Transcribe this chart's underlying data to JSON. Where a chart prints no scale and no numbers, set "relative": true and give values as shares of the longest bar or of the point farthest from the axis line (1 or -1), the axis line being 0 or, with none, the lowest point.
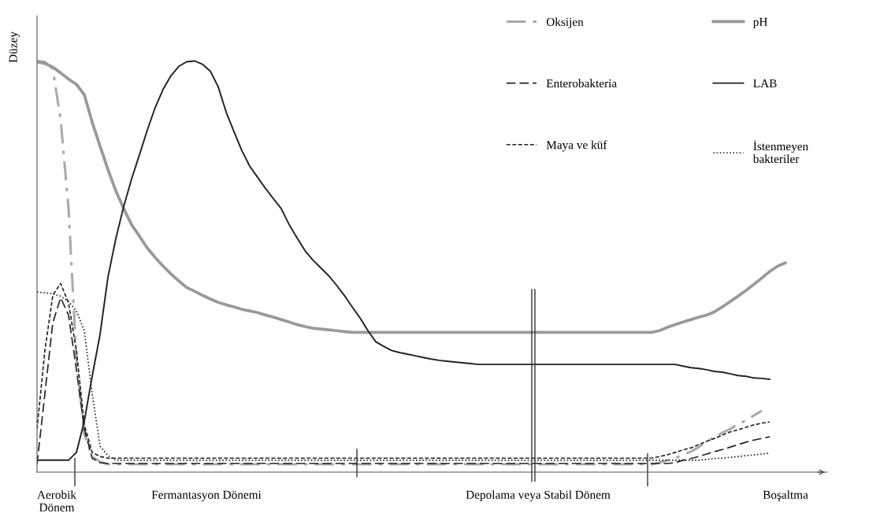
{
  "chart_data": {
    "type": "line",
    "relative": true,
    "ylabel": "Düzey",
    "legend": "top right",
    "categories": [
      null,
      null,
      null,
      null,
      null,
      null,
      null,
      null,
      null,
      null,
      null,
      null,
      null,
      null,
      null,
      null,
      null,
      null,
      null,
      null,
      null,
      null,
      null,
      null,
      null,
      null,
      null,
      null,
      null,
      null,
      null,
      null,
      null,
      null,
      null,
      null,
      null,
      null,
      null,
      null,
      null,
      null,
      null,
      null,
      null,
      null,
      null,
      null,
      null,
      null,
      null,
      null,
      null,
      null,
      null,
      null,
      null,
      null,
      null,
      null,
      null,
      null,
      null,
      null,
      null,
      null,
      null,
      null,
      null,
      null,
      null,
      null,
      null,
      null,
      null,
      null,
      null,
      null,
      null,
      null,
      null,
      null,
      null,
      null,
      null,
      null,
      null,
      null,
      null,
      null,
      null,
      null,
      null,
      null,
      null,
      null,
      null,
      null,
      null,
      null,
      null
    ],
    "series": [
      {
        "name": "Oksijen",
        "color": "#aaaaaa",
        "line_style": "dashdot",
        "values": [
          1.0,
          0.998,
          0.981,
          0.857,
          0.641,
          0.277,
          0.092,
          0.038,
          0.025,
          0.019,
          0.019,
          0.019,
          0.019,
          0.019,
          0.019,
          0.019,
          0.019,
          0.019,
          0.019,
          0.019,
          0.019,
          0.019,
          0.019,
          0.019,
          0.019,
          0.019,
          0.019,
          0.019,
          0.019,
          0.019,
          0.019,
          0.019,
          0.019,
          0.019,
          0.019,
          0.019,
          0.019,
          0.019,
          0.019,
          0.019,
          0.019,
          0.019,
          0.019,
          0.019,
          0.019,
          0.019,
          0.019,
          0.019,
          0.019,
          0.019,
          0.019,
          0.019,
          0.019,
          0.019,
          0.019,
          0.019,
          0.019,
          0.019,
          0.019,
          0.019,
          0.019,
          0.019,
          0.019,
          0.019,
          0.019,
          0.019,
          0.019,
          0.019,
          0.019,
          0.019,
          0.019,
          0.019,
          0.019,
          0.019,
          0.019,
          0.019,
          0.019,
          0.019,
          0.019,
          0.023,
          0.029,
          0.034,
          0.042,
          0.05,
          0.061,
          0.075,
          0.084,
          0.096,
          0.105,
          0.117,
          0.126,
          0.138,
          0.149,
          null,
          null,
          null,
          null,
          null,
          null,
          null,
          null
        ]
      },
      {
        "name": "pH",
        "color": "#999999",
        "line_style": "solid",
        "values": [
          0.998,
          0.994,
          0.985,
          0.971,
          0.956,
          0.943,
          0.918,
          0.851,
          0.793,
          0.736,
          0.684,
          0.641,
          0.602,
          0.574,
          0.545,
          0.522,
          0.501,
          0.482,
          0.465,
          0.449,
          0.44,
          0.43,
          0.421,
          0.413,
          0.407,
          0.402,
          0.396,
          0.392,
          0.388,
          0.382,
          0.377,
          0.371,
          0.365,
          0.359,
          0.354,
          0.35,
          0.348,
          0.346,
          0.344,
          0.342,
          0.34,
          0.34,
          0.34,
          0.34,
          0.34,
          0.34,
          0.34,
          0.34,
          0.34,
          0.34,
          0.34,
          0.34,
          0.34,
          0.34,
          0.34,
          0.34,
          0.34,
          0.34,
          0.34,
          0.34,
          0.34,
          0.34,
          0.34,
          0.34,
          0.34,
          0.34,
          0.34,
          0.34,
          0.34,
          0.34,
          0.34,
          0.34,
          0.34,
          0.34,
          0.34,
          0.34,
          0.34,
          0.34,
          0.34,
          0.344,
          0.352,
          0.359,
          0.365,
          0.371,
          0.377,
          0.382,
          0.39,
          0.402,
          0.415,
          0.428,
          0.442,
          0.457,
          0.472,
          0.488,
          0.501,
          0.509,
          null,
          null,
          null,
          null,
          null
        ]
      },
      {
        "name": "Enterobakteria",
        "color": "#222222",
        "line_style": "longdashed",
        "values": [
          0.019,
          0.191,
          0.363,
          0.424,
          0.382,
          0.249,
          0.105,
          0.034,
          0.023,
          0.021,
          0.021,
          0.021,
          0.021,
          0.021,
          0.021,
          0.021,
          0.021,
          0.021,
          0.021,
          0.021,
          0.021,
          0.021,
          0.021,
          0.021,
          0.021,
          0.021,
          0.021,
          0.021,
          0.021,
          0.021,
          0.021,
          0.021,
          0.021,
          0.021,
          0.021,
          0.021,
          0.021,
          0.021,
          0.021,
          0.021,
          0.021,
          0.021,
          0.021,
          0.021,
          0.021,
          0.021,
          0.021,
          0.021,
          0.021,
          0.021,
          0.021,
          0.021,
          0.021,
          0.021,
          0.021,
          0.021,
          0.021,
          0.021,
          0.021,
          0.021,
          0.021,
          0.021,
          0.021,
          0.021,
          0.021,
          0.021,
          0.021,
          0.021,
          0.021,
          0.021,
          0.021,
          0.021,
          0.021,
          0.021,
          0.021,
          0.021,
          0.021,
          0.021,
          0.021,
          0.021,
          0.021,
          0.023,
          0.029,
          0.033,
          0.038,
          0.044,
          0.05,
          0.055,
          0.061,
          0.067,
          0.073,
          0.078,
          0.082,
          0.086,
          null,
          null,
          null,
          null,
          null,
          null,
          null
        ]
      },
      {
        "name": "LAB",
        "color": "#222222",
        "line_style": "solid",
        "values": [
          0.029,
          0.029,
          0.029,
          0.029,
          0.029,
          0.048,
          0.124,
          0.233,
          0.335,
          0.474,
          0.568,
          0.646,
          0.713,
          0.772,
          0.832,
          0.887,
          0.931,
          0.964,
          0.987,
          0.998,
          1.0,
          0.992,
          0.975,
          0.937,
          0.876,
          0.828,
          0.782,
          0.744,
          0.717,
          0.69,
          0.665,
          0.641,
          0.602,
          0.57,
          0.539,
          0.516,
          0.497,
          0.478,
          0.455,
          0.43,
          0.402,
          0.375,
          0.344,
          0.317,
          0.306,
          0.296,
          0.291,
          0.287,
          0.283,
          0.279,
          0.275,
          0.272,
          0.27,
          0.268,
          0.266,
          0.264,
          0.262,
          0.262,
          0.262,
          0.262,
          0.262,
          0.262,
          0.262,
          0.262,
          0.262,
          0.262,
          0.262,
          0.262,
          0.262,
          0.262,
          0.262,
          0.262,
          0.262,
          0.262,
          0.262,
          0.262,
          0.262,
          0.262,
          0.262,
          0.262,
          0.262,
          0.262,
          0.258,
          0.254,
          0.252,
          0.249,
          0.245,
          0.243,
          0.239,
          0.235,
          0.233,
          0.229,
          0.228,
          0.226,
          null,
          null,
          null,
          null,
          null,
          null,
          null
        ]
      },
      {
        "name": "Maya ve küf",
        "color": "#222222",
        "line_style": "dashed",
        "values": [
          0.105,
          0.296,
          0.43,
          0.459,
          0.411,
          0.296,
          0.115,
          0.048,
          0.038,
          0.034,
          0.034,
          0.034,
          0.034,
          0.034,
          0.034,
          0.034,
          0.034,
          0.034,
          0.034,
          0.034,
          0.034,
          0.034,
          0.034,
          0.034,
          0.034,
          0.034,
          0.034,
          0.034,
          0.034,
          0.034,
          0.034,
          0.034,
          0.034,
          0.034,
          0.034,
          0.034,
          0.034,
          0.034,
          0.034,
          0.034,
          0.034,
          0.034,
          0.034,
          0.034,
          0.034,
          0.034,
          0.034,
          0.034,
          0.034,
          0.034,
          0.034,
          0.034,
          0.034,
          0.034,
          0.034,
          0.034,
          0.034,
          0.034,
          0.034,
          0.034,
          0.034,
          0.034,
          0.034,
          0.034,
          0.034,
          0.034,
          0.034,
          0.034,
          0.034,
          0.034,
          0.034,
          0.034,
          0.034,
          0.034,
          0.034,
          0.034,
          0.034,
          0.034,
          0.034,
          0.038,
          0.042,
          0.048,
          0.054,
          0.059,
          0.067,
          0.075,
          0.082,
          0.09,
          0.098,
          0.103,
          0.109,
          0.115,
          0.119,
          0.122,
          null,
          null,
          null,
          null,
          null,
          null,
          null
        ]
      },
      {
        "name": "İstenmeyen\nbakteriler",
        "color": "#222222",
        "line_style": "dotted",
        "values": [
          0.438,
          0.436,
          0.434,
          0.428,
          0.415,
          0.392,
          0.344,
          0.191,
          0.063,
          0.04,
          0.029,
          0.029,
          0.029,
          0.029,
          0.029,
          0.029,
          0.029,
          0.029,
          0.029,
          0.029,
          0.029,
          0.029,
          0.029,
          0.029,
          0.029,
          0.029,
          0.029,
          0.029,
          0.029,
          0.029,
          0.029,
          0.029,
          0.029,
          0.029,
          0.029,
          0.029,
          0.029,
          0.029,
          0.029,
          0.029,
          0.029,
          0.029,
          0.029,
          0.029,
          0.029,
          0.029,
          0.029,
          0.029,
          0.029,
          0.029,
          0.029,
          0.029,
          0.029,
          0.029,
          0.029,
          0.029,
          0.029,
          0.029,
          0.029,
          0.029,
          0.029,
          0.029,
          0.029,
          0.029,
          0.029,
          0.029,
          0.029,
          0.029,
          0.029,
          0.029,
          0.029,
          0.029,
          0.029,
          0.029,
          0.029,
          0.029,
          0.029,
          0.029,
          0.029,
          0.029,
          0.029,
          0.029,
          0.029,
          0.029,
          0.029,
          0.031,
          0.033,
          0.034,
          0.036,
          0.038,
          0.04,
          0.042,
          0.044,
          0.046,
          null,
          null,
          null,
          null,
          null,
          null,
          null
        ]
      }
    ],
    "annotations": [
      "Aerobik\nDönem",
      "Fermantasyon Dönemi",
      "Depolama veya Stabil Dönem",
      "Boşaltma"
    ]
  }
}
